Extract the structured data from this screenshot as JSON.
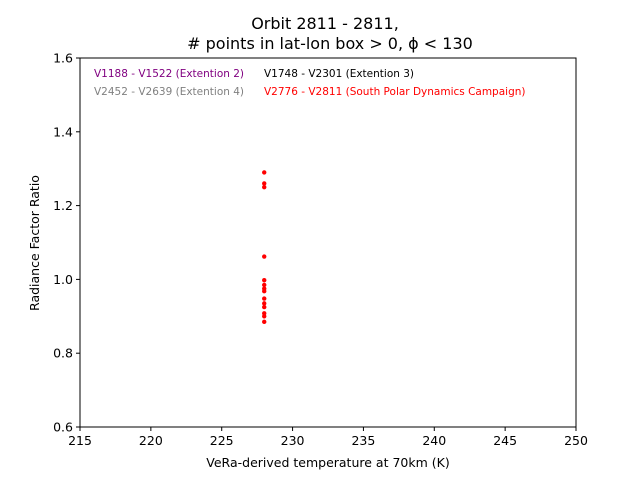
{
  "chart_data": {
    "type": "scatter",
    "title_line1": "Orbit 2811 - 2811,",
    "title_line2": "# points in lat-lon box > 0, ϕ < 130",
    "xlabel": "VeRa-derived temperature at 70km (K)",
    "ylabel": "Radiance Factor Ratio",
    "xlim": [
      215,
      250
    ],
    "ylim": [
      0.6,
      1.6
    ],
    "x_ticks": [
      "215",
      "220",
      "225",
      "230",
      "235",
      "240",
      "245",
      "250"
    ],
    "y_ticks": [
      "0.6",
      "0.8",
      "1.0",
      "1.2",
      "1.4",
      "1.6"
    ],
    "grid": false,
    "legend_placement": "top-left",
    "legend": [
      {
        "label": "V1188 - V1522 (Extention 2)",
        "color": "#800080"
      },
      {
        "label": "V1748 - V2301 (Extention 3)",
        "color": "#000000"
      },
      {
        "label": "V2452 - V2639 (Extention 4)",
        "color": "#808080"
      },
      {
        "label": "V2776 - V2811 (South Polar Dynamics Campaign)",
        "color": "#ff0000"
      }
    ],
    "series": [
      {
        "name": "V2776 - V2811 (South Polar Dynamics Campaign)",
        "color": "#ff0000",
        "points": [
          {
            "x": 228,
            "y": 1.29
          },
          {
            "x": 228,
            "y": 1.26
          },
          {
            "x": 228,
            "y": 1.25
          },
          {
            "x": 228,
            "y": 1.062
          },
          {
            "x": 228,
            "y": 0.998
          },
          {
            "x": 228,
            "y": 0.985
          },
          {
            "x": 228,
            "y": 0.975
          },
          {
            "x": 228,
            "y": 0.968
          },
          {
            "x": 228,
            "y": 0.948
          },
          {
            "x": 228,
            "y": 0.935
          },
          {
            "x": 228,
            "y": 0.925
          },
          {
            "x": 228,
            "y": 0.908
          },
          {
            "x": 228,
            "y": 0.9
          },
          {
            "x": 228,
            "y": 0.885
          }
        ]
      }
    ]
  }
}
